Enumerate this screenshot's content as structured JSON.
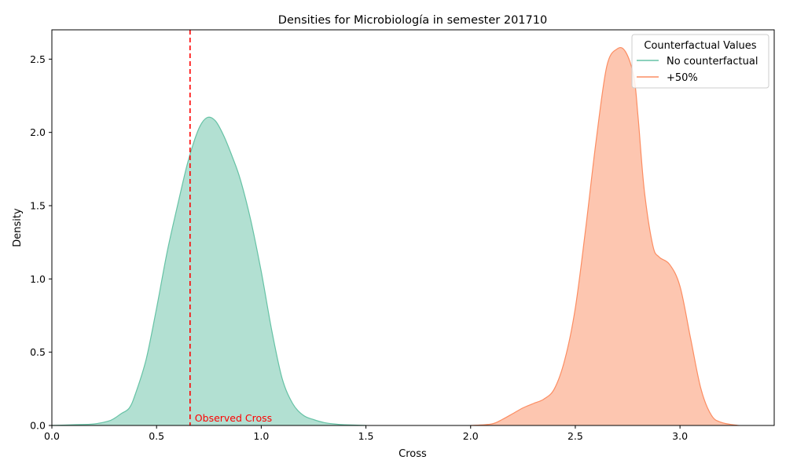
{
  "chart_data": {
    "type": "area",
    "title": "Densities for Microbiología in semester 201710",
    "xlabel": "Cross",
    "ylabel": "Density",
    "xlim": [
      0.0,
      3.45
    ],
    "ylim": [
      0.0,
      2.7
    ],
    "xticks": [
      0.0,
      0.5,
      1.0,
      1.5,
      2.0,
      2.5,
      3.0
    ],
    "xtick_labels": [
      "0.0",
      "0.5",
      "1.0",
      "1.5",
      "2.0",
      "2.5",
      "3.0"
    ],
    "yticks": [
      0.0,
      0.5,
      1.0,
      1.5,
      2.0,
      2.5
    ],
    "ytick_labels": [
      "0.0",
      "0.5",
      "1.0",
      "1.5",
      "2.0",
      "2.5"
    ],
    "grid": false,
    "legend": {
      "title": "Counterfactual Values",
      "position": "top-right"
    },
    "observed": {
      "x": 0.66,
      "label": "Observed Cross",
      "color": "#ff0000"
    },
    "series": [
      {
        "name": "No counterfactual",
        "color": "#66c2a5",
        "x": [
          0.0,
          0.1,
          0.2,
          0.27,
          0.3,
          0.33,
          0.37,
          0.4,
          0.45,
          0.5,
          0.55,
          0.6,
          0.65,
          0.7,
          0.74,
          0.78,
          0.82,
          0.86,
          0.9,
          0.95,
          1.0,
          1.05,
          1.1,
          1.15,
          1.2,
          1.25,
          1.3,
          1.35,
          1.4,
          1.5
        ],
        "y": [
          0.0,
          0.005,
          0.01,
          0.03,
          0.05,
          0.08,
          0.12,
          0.22,
          0.45,
          0.8,
          1.18,
          1.5,
          1.8,
          2.02,
          2.1,
          2.08,
          1.98,
          1.84,
          1.68,
          1.4,
          1.05,
          0.65,
          0.32,
          0.15,
          0.07,
          0.04,
          0.02,
          0.01,
          0.005,
          0.0
        ]
      },
      {
        "name": "+50%",
        "color": "#fc8d62",
        "x": [
          2.0,
          2.1,
          2.15,
          2.2,
          2.25,
          2.3,
          2.35,
          2.4,
          2.45,
          2.5,
          2.55,
          2.6,
          2.65,
          2.7,
          2.74,
          2.78,
          2.8,
          2.83,
          2.87,
          2.9,
          2.95,
          3.0,
          3.05,
          3.1,
          3.15,
          3.2,
          3.28
        ],
        "y": [
          0.0,
          0.01,
          0.04,
          0.08,
          0.12,
          0.15,
          0.18,
          0.25,
          0.45,
          0.8,
          1.35,
          1.95,
          2.45,
          2.57,
          2.55,
          2.38,
          2.1,
          1.6,
          1.23,
          1.15,
          1.1,
          0.95,
          0.6,
          0.25,
          0.07,
          0.02,
          0.0
        ]
      }
    ]
  }
}
